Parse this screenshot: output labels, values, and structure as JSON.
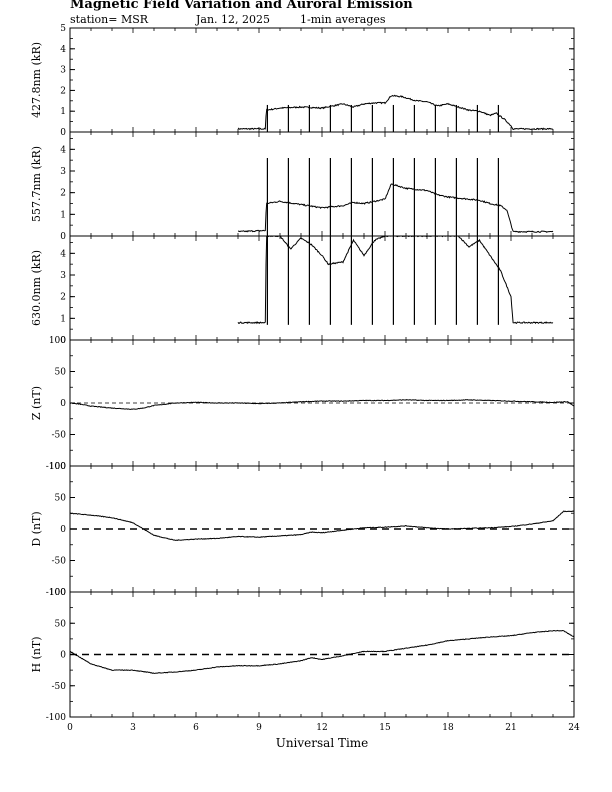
{
  "header": {
    "title": "Magnetic Field Variation and Auroral Emission",
    "station": "station= MSR",
    "date": "Jan. 12, 2025",
    "averaging": "1-min averages"
  },
  "chart_data": {
    "type": "line",
    "xlabel": "Universal Time",
    "xlim": [
      0,
      24
    ],
    "xticks": [
      "0",
      "3",
      "6",
      "9",
      "12",
      "15",
      "18",
      "21",
      "24"
    ],
    "panels": [
      {
        "id": "427",
        "ylabel": "427.8nm (kR)",
        "ylim": [
          0,
          5
        ],
        "yticks": [
          "0",
          "1",
          "2",
          "3",
          "4",
          "5"
        ],
        "baseline": false,
        "series": [
          {
            "x": [
              8.0,
              9.3,
              9.35,
              10,
              11,
              12,
              12.5,
              13,
              13.5,
              14,
              14.5,
              15,
              15.3,
              15.8,
              16.5,
              17,
              17.5,
              18,
              18.5,
              19,
              19.5,
              20,
              20.3,
              20.7,
              21,
              21.1,
              22,
              23.0
            ],
            "y": [
              0.15,
              0.15,
              1.05,
              1.15,
              1.2,
              1.15,
              1.25,
              1.35,
              1.2,
              1.35,
              1.4,
              1.4,
              1.75,
              1.7,
              1.5,
              1.45,
              1.25,
              1.35,
              1.2,
              1.05,
              1.0,
              0.8,
              0.9,
              0.6,
              0.3,
              0.15,
              0.15,
              0.15
            ]
          }
        ],
        "spikes": {
          "times": [
            9.4,
            10.4,
            11.4,
            12.4,
            13.4,
            14.4,
            15.4,
            16.4,
            17.4,
            18.4,
            19.4,
            20.4
          ],
          "top": 1.3
        }
      },
      {
        "id": "557",
        "ylabel": "557.7nm (kR)",
        "ylim": [
          0,
          4.8
        ],
        "yticks": [
          "0",
          "1",
          "2",
          "3",
          "4"
        ],
        "baseline": false,
        "series": [
          {
            "x": [
              8.0,
              9.3,
              9.35,
              10,
              11,
              12,
              13,
              13.5,
              14,
              14.5,
              15,
              15.3,
              16,
              17,
              17.5,
              18,
              18.5,
              19,
              19.5,
              20,
              20.5,
              20.8,
              21.1,
              22,
              23.0
            ],
            "y": [
              0.2,
              0.25,
              1.5,
              1.6,
              1.45,
              1.3,
              1.4,
              1.55,
              1.5,
              1.6,
              1.7,
              2.4,
              2.2,
              2.1,
              1.9,
              1.8,
              1.75,
              1.7,
              1.65,
              1.5,
              1.4,
              1.2,
              0.2,
              0.2,
              0.2
            ]
          }
        ],
        "spikes": {
          "times": [
            9.4,
            10.4,
            11.4,
            12.4,
            13.4,
            14.4,
            15.4,
            16.4,
            17.4,
            18.4,
            19.4,
            20.4
          ],
          "top": 3.6
        }
      },
      {
        "id": "630",
        "ylabel": "630.0nm (kR)",
        "ylim": [
          0,
          4.8
        ],
        "yticks": [
          "0",
          "1",
          "2",
          "3",
          "4"
        ],
        "baseline": false,
        "series": [
          {
            "x": [
              8.0,
              9.3,
              9.35,
              10,
              10.5,
              11,
              11.5,
              12,
              12.3,
              13,
              13.5,
              14,
              14.5,
              15,
              15.5,
              18,
              18.5,
              19,
              19.5,
              20,
              20.5,
              21.0,
              21.1,
              22,
              23.0
            ],
            "y": [
              0.8,
              0.8,
              4.8,
              4.8,
              4.2,
              4.7,
              4.4,
              3.9,
              3.5,
              3.6,
              4.6,
              3.9,
              4.6,
              4.8,
              4.8,
              4.8,
              4.8,
              4.3,
              4.6,
              3.9,
              3.2,
              2.0,
              0.8,
              0.8,
              0.8
            ]
          }
        ],
        "spikes": {
          "times": [
            9.4,
            10.4,
            11.4,
            12.4,
            13.4,
            14.4,
            15.4,
            16.4,
            17.4,
            18.4,
            19.4,
            20.4
          ],
          "top": 4.8,
          "bottom": 0.7
        }
      },
      {
        "id": "Z",
        "ylabel": "Z (nT)",
        "ylim": [
          -100,
          100
        ],
        "yticks": [
          "-100",
          "-50",
          "0",
          "50",
          "100"
        ],
        "baseline": true,
        "baseline_style": "fine-dashed",
        "series": [
          {
            "x": [
              0,
              0.5,
              1,
              2,
              3,
              3.5,
              4,
              5,
              6,
              7,
              8,
              9,
              10,
              11,
              12,
              13,
              14,
              15,
              16,
              17,
              18,
              19,
              20,
              21,
              22,
              23,
              23.7,
              24
            ],
            "y": [
              0,
              -2,
              -5,
              -8,
              -10,
              -8,
              -4,
              0,
              1,
              0,
              0,
              -1,
              0,
              2,
              3,
              3,
              4,
              4,
              5,
              4,
              4,
              5,
              4,
              3,
              2,
              1,
              2,
              -5
            ]
          }
        ]
      },
      {
        "id": "D",
        "ylabel": "D (nT)",
        "ylim": [
          -100,
          100
        ],
        "yticks": [
          "-100",
          "-50",
          "0",
          "50",
          "100"
        ],
        "baseline": true,
        "baseline_style": "dashed",
        "series": [
          {
            "x": [
              0,
              1,
              2,
              3,
              3.5,
              4,
              5,
              6,
              7,
              8,
              9,
              10,
              11,
              11.5,
              12,
              13,
              14,
              15,
              16,
              17,
              18,
              19,
              20,
              21,
              22,
              23,
              23.5,
              24
            ],
            "y": [
              25,
              22,
              18,
              10,
              0,
              -10,
              -18,
              -16,
              -15,
              -12,
              -13,
              -11,
              -9,
              -5,
              -6,
              -2,
              2,
              3,
              5,
              2,
              0,
              1,
              2,
              4,
              8,
              13,
              28,
              28
            ]
          }
        ]
      },
      {
        "id": "H",
        "ylabel": "H (nT)",
        "ylim": [
          -100,
          100
        ],
        "yticks": [
          "-100",
          "-50",
          "0",
          "50",
          "100"
        ],
        "baseline": true,
        "baseline_style": "dashed",
        "series": [
          {
            "x": [
              0,
              0.5,
              1,
              2,
              3,
              4,
              5,
              6,
              7,
              8,
              9,
              10,
              11,
              11.5,
              12,
              13,
              14,
              15,
              16,
              17,
              18,
              19,
              20,
              21,
              22,
              23,
              23.5,
              24
            ],
            "y": [
              5,
              -5,
              -15,
              -25,
              -25,
              -30,
              -28,
              -25,
              -20,
              -18,
              -18,
              -15,
              -10,
              -5,
              -8,
              -2,
              5,
              5,
              10,
              15,
              22,
              25,
              28,
              30,
              35,
              38,
              38,
              28
            ]
          }
        ]
      }
    ]
  }
}
